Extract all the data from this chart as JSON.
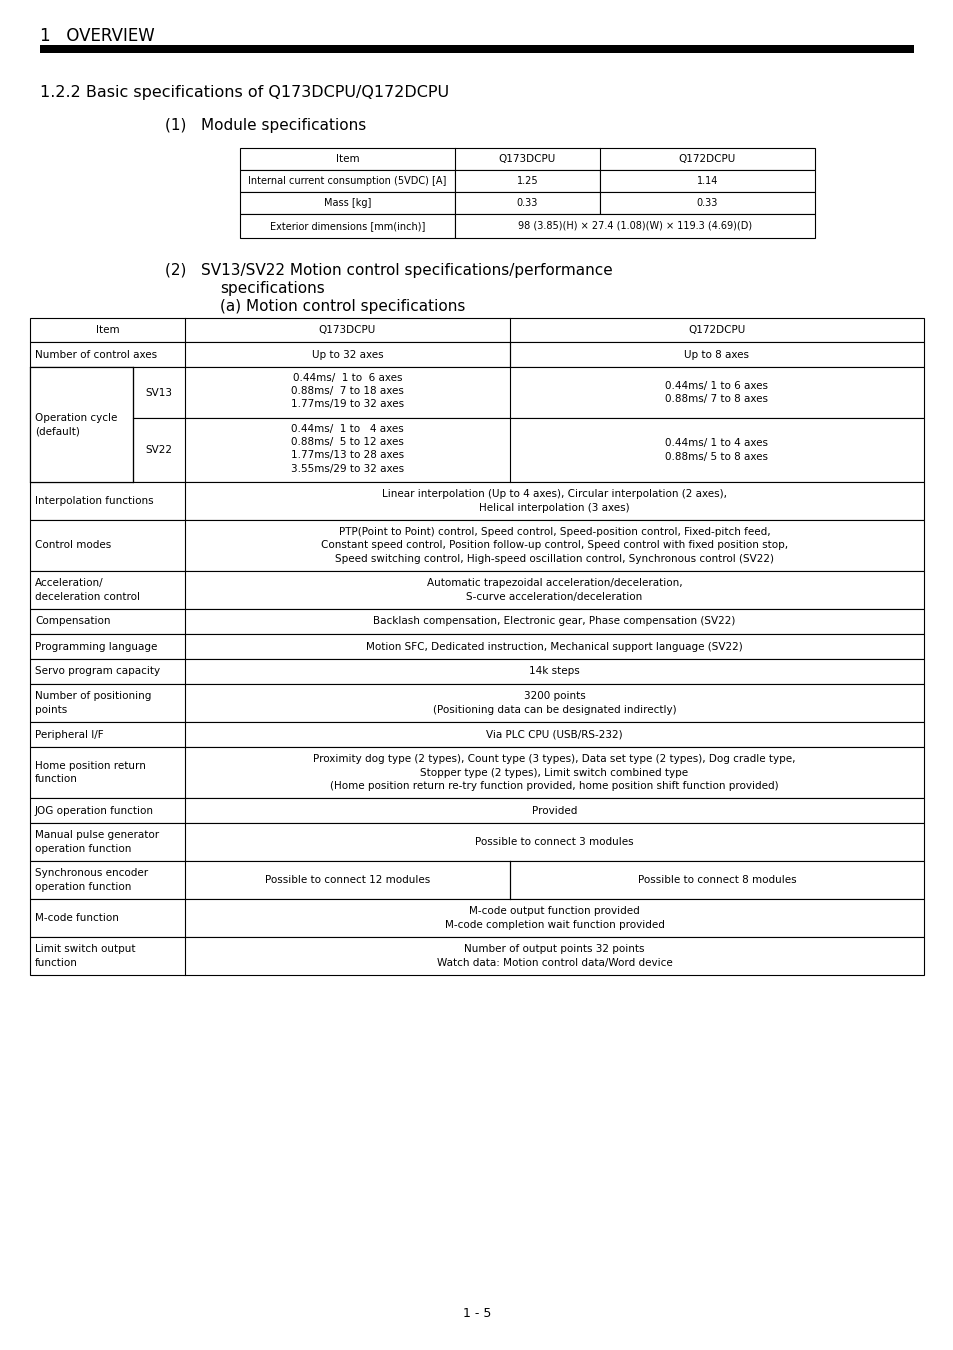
{
  "page_title": "1   OVERVIEW",
  "section_title": "1.2.2 Basic specifications of Q173DCPU/Q172DCPU",
  "sub1_label": "(1)   Module specifications",
  "sub2_line1": "(2)   SV13/SV22 Motion control specifications/performance",
  "sub2_line2": "          specifications",
  "sub2_line3": "          (a) Motion control specifications",
  "module_headers": [
    "Item",
    "Q173DCPU",
    "Q172DCPU"
  ],
  "module_rows": [
    [
      "Internal current consumption (5VDC) [A]",
      "1.25",
      "1.14",
      false
    ],
    [
      "Mass [kg]",
      "0.33",
      "0.33",
      false
    ],
    [
      "Exterior dimensions [mm(inch)]",
      "98 (3.85)(H) × 27.4 (1.08)(W) × 119.3 (4.69)(D)",
      "",
      true
    ]
  ],
  "motion_headers": [
    "Item",
    "Q173DCPU",
    "Q172DCPU"
  ],
  "motion_rows": [
    {
      "item": "Number of control axes",
      "sub": "",
      "q173": "Up to 32 axes",
      "q172": "Up to 8 axes",
      "span": false,
      "item_span": false
    },
    {
      "item": "Operation cycle\n(default)",
      "sub": "SV13",
      "q173": "0.44ms/  1 to  6 axes\n0.88ms/  7 to 18 axes\n1.77ms/19 to 32 axes",
      "q172": "0.44ms/ 1 to 6 axes\n0.88ms/ 7 to 8 axes",
      "span": false,
      "item_span": true
    },
    {
      "item": "",
      "sub": "SV22",
      "q173": "0.44ms/  1 to   4 axes\n0.88ms/  5 to 12 axes\n1.77ms/13 to 28 axes\n3.55ms/29 to 32 axes",
      "q172": "0.44ms/ 1 to 4 axes\n0.88ms/ 5 to 8 axes",
      "span": false,
      "item_span": true
    },
    {
      "item": "Interpolation functions",
      "sub": "",
      "q173": "Linear interpolation (Up to 4 axes), Circular interpolation (2 axes),\nHelical interpolation (3 axes)",
      "q172": "",
      "span": true,
      "item_span": false
    },
    {
      "item": "Control modes",
      "sub": "",
      "q173": "PTP(Point to Point) control, Speed control, Speed-position control, Fixed-pitch feed,\nConstant speed control, Position follow-up control, Speed control with fixed position stop,\nSpeed switching control, High-speed oscillation control, Synchronous control (SV22)",
      "q172": "",
      "span": true,
      "item_span": false
    },
    {
      "item": "Acceleration/\ndeceleration control",
      "sub": "",
      "q173": "Automatic trapezoidal acceleration/deceleration,\nS-curve acceleration/deceleration",
      "q172": "",
      "span": true,
      "item_span": false
    },
    {
      "item": "Compensation",
      "sub": "",
      "q173": "Backlash compensation, Electronic gear, Phase compensation (SV22)",
      "q172": "",
      "span": true,
      "item_span": false
    },
    {
      "item": "Programming language",
      "sub": "",
      "q173": "Motion SFC, Dedicated instruction, Mechanical support language (SV22)",
      "q172": "",
      "span": true,
      "item_span": false
    },
    {
      "item": "Servo program capacity",
      "sub": "",
      "q173": "14k steps",
      "q172": "",
      "span": true,
      "item_span": false
    },
    {
      "item": "Number of positioning\npoints",
      "sub": "",
      "q173": "3200 points\n(Positioning data can be designated indirectly)",
      "q172": "",
      "span": true,
      "item_span": false
    },
    {
      "item": "Peripheral I/F",
      "sub": "",
      "q173": "Via PLC CPU (USB/RS-232)",
      "q172": "",
      "span": true,
      "item_span": false
    },
    {
      "item": "Home position return\nfunction",
      "sub": "",
      "q173": "Proximity dog type (2 types), Count type (3 types), Data set type (2 types), Dog cradle type,\nStopper type (2 types), Limit switch combined type\n(Home position return re-try function provided, home position shift function provided)",
      "q172": "",
      "span": true,
      "item_span": false
    },
    {
      "item": "JOG operation function",
      "sub": "",
      "q173": "Provided",
      "q172": "",
      "span": true,
      "item_span": false
    },
    {
      "item": "Manual pulse generator\noperation function",
      "sub": "",
      "q173": "Possible to connect 3 modules",
      "q172": "",
      "span": true,
      "item_span": false
    },
    {
      "item": "Synchronous encoder\noperation function",
      "sub": "",
      "q173": "Possible to connect 12 modules",
      "q172": "Possible to connect 8 modules",
      "span": false,
      "item_span": false
    },
    {
      "item": "M-code function",
      "sub": "",
      "q173": "M-code output function provided\nM-code completion wait function provided",
      "q172": "",
      "span": true,
      "item_span": false
    },
    {
      "item": "Limit switch output\nfunction",
      "sub": "",
      "q173": "Number of output points 32 points\nWatch data: Motion control data/Word device",
      "q172": "",
      "span": true,
      "item_span": false
    }
  ],
  "page_number": "1 - 5"
}
